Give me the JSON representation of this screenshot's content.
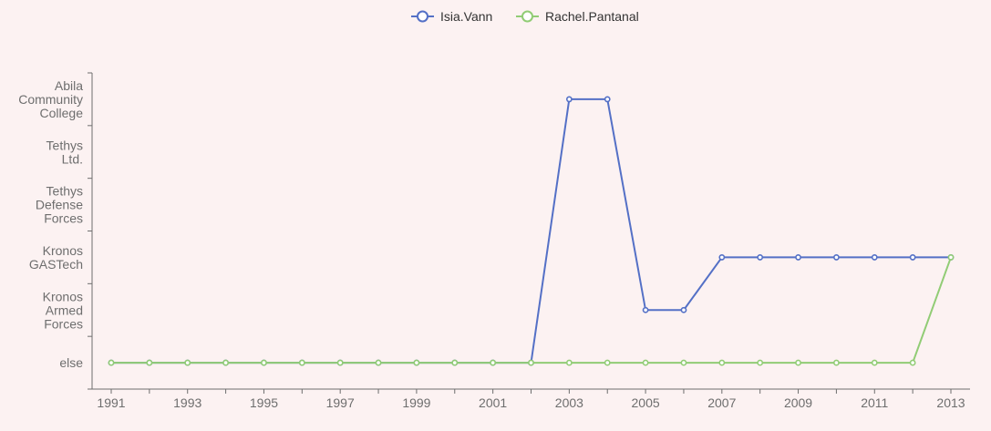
{
  "chart_data": {
    "type": "line",
    "x": [
      1991,
      1992,
      1993,
      1994,
      1995,
      1996,
      1997,
      1998,
      1999,
      2000,
      2001,
      2002,
      2003,
      2004,
      2005,
      2006,
      2007,
      2008,
      2009,
      2010,
      2011,
      2012,
      2013
    ],
    "x_tick_labels": [
      "1991",
      "1993",
      "1995",
      "1997",
      "1999",
      "2001",
      "2003",
      "2005",
      "2007",
      "2009",
      "2011",
      "2013"
    ],
    "y_categories": [
      "else",
      "Kronos Armed Forces",
      "Kronos GASTech",
      "Tethys Defense Forces",
      "Tethys Ltd.",
      "Abila Community College"
    ],
    "y_tick_lines": [
      [
        "else"
      ],
      [
        "Kronos",
        "Armed",
        "Forces"
      ],
      [
        "Kronos",
        "GASTech"
      ],
      [
        "Tethys",
        "Defense",
        "Forces"
      ],
      [
        "Tethys",
        "Ltd."
      ],
      [
        "Abila",
        "Community",
        "College"
      ]
    ],
    "series": [
      {
        "name": "Isia.Vann",
        "color": "#5470c6",
        "values": [
          "else",
          "else",
          "else",
          "else",
          "else",
          "else",
          "else",
          "else",
          "else",
          "else",
          "else",
          "else",
          "Abila Community College",
          "Abila Community College",
          "Kronos Armed Forces",
          "Kronos Armed Forces",
          "Kronos GASTech",
          "Kronos GASTech",
          "Kronos GASTech",
          "Kronos GASTech",
          "Kronos GASTech",
          "Kronos GASTech",
          "Kronos GASTech"
        ]
      },
      {
        "name": "Rachel.Pantanal",
        "color": "#91cc75",
        "values": [
          "else",
          "else",
          "else",
          "else",
          "else",
          "else",
          "else",
          "else",
          "else",
          "else",
          "else",
          "else",
          "else",
          "else",
          "else",
          "else",
          "else",
          "else",
          "else",
          "else",
          "else",
          "else",
          "Kronos GASTech"
        ]
      }
    ],
    "legend_position": "top-center",
    "grid": false
  }
}
